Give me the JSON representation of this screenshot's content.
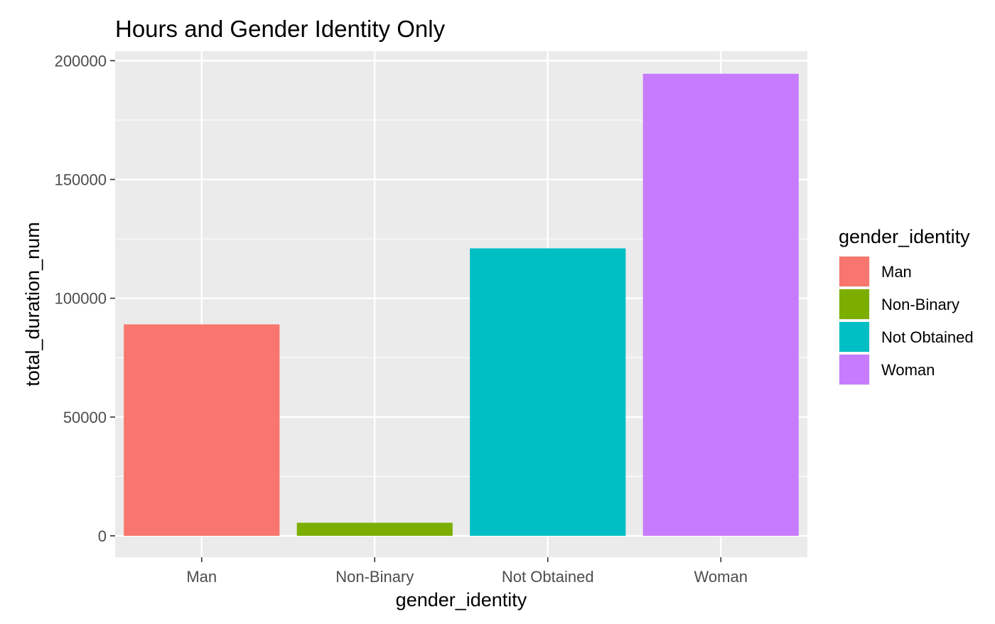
{
  "chart_data": {
    "type": "bar",
    "title": "Hours and Gender Identity Only",
    "xlabel": "gender_identity",
    "ylabel": "total_duration_num",
    "categories": [
      "Man",
      "Non-Binary",
      "Not Obtained",
      "Woman"
    ],
    "values": [
      89000,
      5500,
      121000,
      194500
    ],
    "colors": [
      "#F8766D",
      "#7CAE00",
      "#00BFC4",
      "#C77CFF"
    ],
    "ylim": [
      -9000,
      204000
    ],
    "yticks": [
      0,
      50000,
      100000,
      150000,
      200000
    ],
    "ytick_labels": [
      "0",
      "50000",
      "100000",
      "150000",
      "200000"
    ],
    "grid": true,
    "panel_background": "#EBEBEB",
    "grid_color": "#FFFFFF",
    "legend": {
      "title": "gender_identity",
      "position": "right",
      "entries": [
        "Man",
        "Non-Binary",
        "Not Obtained",
        "Woman"
      ]
    }
  }
}
